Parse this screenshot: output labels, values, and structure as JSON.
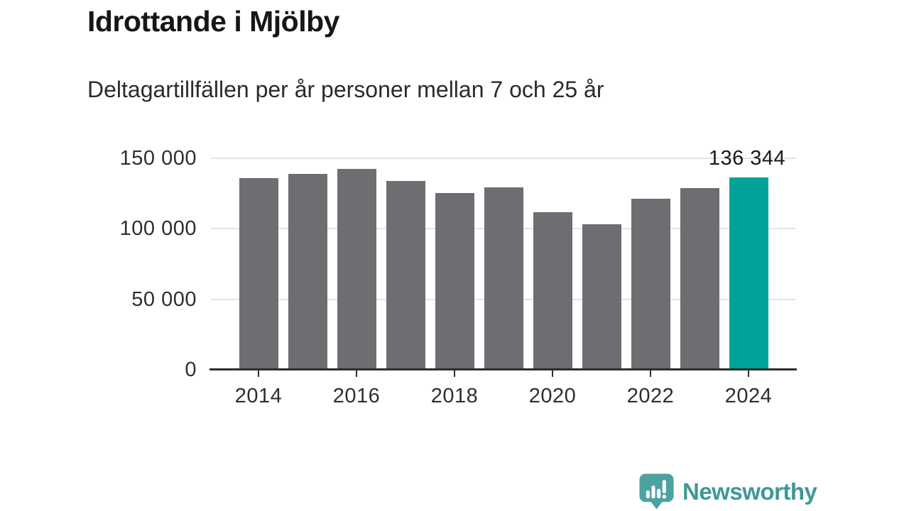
{
  "header": {
    "title": "Idrottande i Mjölby",
    "subtitle": "Deltagartillfällen per år personer mellan 7 och 25 år"
  },
  "chart_data": {
    "type": "bar",
    "title": "Idrottande i Mjölby",
    "subtitle": "Deltagartillfällen per år personer mellan 7 och 25 år",
    "categories": [
      "2014",
      "2015",
      "2016",
      "2017",
      "2018",
      "2019",
      "2020",
      "2021",
      "2022",
      "2023",
      "2024"
    ],
    "values": [
      135800,
      138900,
      142200,
      133900,
      125400,
      129500,
      111900,
      103200,
      121200,
      129000,
      136344
    ],
    "highlight_category": "2024",
    "annotation_label": "136 344",
    "ylim": [
      0,
      150000
    ],
    "y_ticks": [
      {
        "value": 0,
        "label": "0"
      },
      {
        "value": 50000,
        "label": "50 000"
      },
      {
        "value": 100000,
        "label": "100 000"
      },
      {
        "value": 150000,
        "label": "150 000"
      }
    ],
    "x_tick_labels": [
      "2014",
      "2016",
      "2018",
      "2020",
      "2022",
      "2024"
    ],
    "grid": true,
    "legend": false,
    "bar_color": "#6d6d72",
    "highlight_color": "#00a39a",
    "gridline_color": "#e4e4e4",
    "axis_color": "#2e2e2e"
  },
  "footer": {
    "brand": "Newsworthy",
    "brand_color": "#3e9896",
    "icon_color": "#4ba2a0"
  }
}
